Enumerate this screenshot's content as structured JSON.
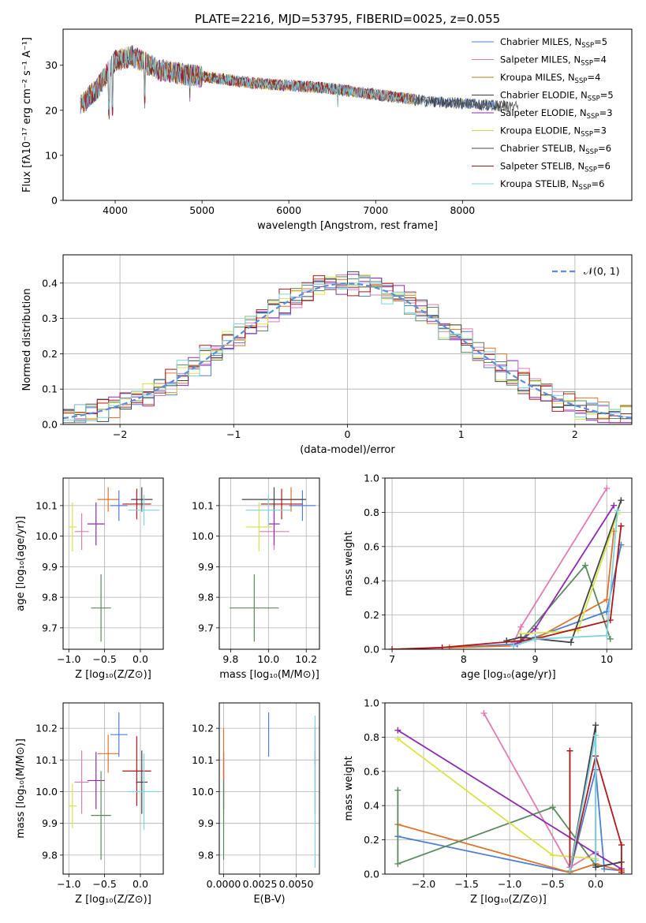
{
  "chart_data": [
    {
      "id": "spectrum",
      "type": "line",
      "title": "PLATE=2216, MJD=53795, FIBERID=0025, z=0.055",
      "xlabel": "wavelength [Angstrom, rest frame]",
      "ylabel": "Flux [fλ10⁻¹⁷ erg cm⁻² s⁻¹ A⁻¹]",
      "xlim": [
        3400,
        9950
      ],
      "ylim": [
        0,
        38
      ],
      "xticks": [
        4000,
        5000,
        6000,
        7000,
        8000
      ],
      "yticks": [
        0,
        10,
        20,
        30
      ],
      "grid": false,
      "legend_position": "upper right",
      "series": [
        {
          "name": "Chabrier MILES, N_SSP=5",
          "color": "#4e7fd6"
        },
        {
          "name": "Salpeter MILES, N_SSP=4",
          "color": "#e37bb3"
        },
        {
          "name": "Kroupa MILES, N_SSP=4",
          "color": "#b47d1a"
        },
        {
          "name": "Chabrier ELODIE, N_SSP=5",
          "color": "#3b3b3b"
        },
        {
          "name": "Salpeter ELODIE, N_SSP=3",
          "color": "#8e2bb0"
        },
        {
          "name": "Kroupa ELODIE, N_SSP=3",
          "color": "#d8d64a"
        },
        {
          "name": "Chabrier STELIB, N_SSP=6",
          "color": "#444444"
        },
        {
          "name": "Salpeter STELIB, N_SSP=6",
          "color": "#b01818"
        },
        {
          "name": "Kroupa STELIB, N_SSP=6",
          "color": "#7fd3e0"
        }
      ],
      "approx_continuum": {
        "x": [
          3600,
          3800,
          4000,
          4200,
          4500,
          4800,
          5200,
          5600,
          6000,
          6400,
          6800,
          7200,
          7600,
          8000,
          8400,
          8800
        ],
        "y": [
          21,
          25,
          31,
          32,
          29,
          28,
          27,
          26,
          25.5,
          25,
          24,
          23,
          22,
          21.5,
          21,
          20.5
        ]
      }
    },
    {
      "id": "residuals",
      "type": "histogram",
      "xlabel": "(data-model)/error",
      "ylabel": "Normed distribution",
      "xlim": [
        -2.5,
        2.5
      ],
      "ylim": [
        0,
        0.48
      ],
      "xticks": [
        -2,
        -1,
        0,
        1,
        2
      ],
      "yticks": [
        0.0,
        0.1,
        0.2,
        0.3,
        0.4
      ],
      "grid": true,
      "legend": [
        {
          "name": "𝒩(0, 1)",
          "color": "#5a8fd6",
          "style": "dashed"
        }
      ],
      "legend_position": "upper right",
      "bin_width": 0.1,
      "series_colors": [
        "#4e7fd6",
        "#e37bb3",
        "#e0732a",
        "#5b8a5f",
        "#8e2bb0",
        "#d8e34a",
        "#444444",
        "#b01818",
        "#7fd3e0"
      ]
    },
    {
      "id": "age-vs-Z",
      "type": "errorbar",
      "xlabel": "Z [log₁₀(Z/Z⊙)]",
      "ylabel": "age  [log₁₀(age/yr)]",
      "xlim": [
        -1.08,
        0.32
      ],
      "ylim": [
        9.63,
        10.19
      ],
      "xticks": [
        -1.0,
        -0.5,
        0.0
      ],
      "yticks": [
        9.7,
        9.8,
        9.9,
        10.0,
        10.1
      ],
      "grid": true,
      "points": [
        {
          "x": -0.82,
          "y": 10.015,
          "xerr": 0.1,
          "yerr": 0.06,
          "color": "#e37bb3"
        },
        {
          "x": -0.95,
          "y": 10.03,
          "xerr": 0.06,
          "yerr": 0.08,
          "color": "#d8e34a"
        },
        {
          "x": -0.62,
          "y": 10.04,
          "xerr": 0.12,
          "yerr": 0.07,
          "color": "#8e2bb0"
        },
        {
          "x": -0.55,
          "y": 9.765,
          "xerr": 0.14,
          "yerr": 0.11,
          "color": "#5b8a5f"
        },
        {
          "x": -0.45,
          "y": 10.12,
          "xerr": 0.15,
          "yerr": 0.04,
          "color": "#e0732a"
        },
        {
          "x": -0.3,
          "y": 10.1,
          "xerr": 0.12,
          "yerr": 0.05,
          "color": "#4e7fd6"
        },
        {
          "x": -0.05,
          "y": 10.105,
          "xerr": 0.2,
          "yerr": 0.05,
          "color": "#b01818"
        },
        {
          "x": 0.02,
          "y": 10.12,
          "xerr": 0.15,
          "yerr": 0.04,
          "color": "#444444"
        },
        {
          "x": 0.05,
          "y": 10.085,
          "xerr": 0.22,
          "yerr": 0.05,
          "color": "#7fd3e0"
        }
      ]
    },
    {
      "id": "age-vs-mass",
      "type": "errorbar",
      "xlabel": "mass [log₁₀(M/M⊙)]",
      "ylabel": "",
      "xlim": [
        9.74,
        10.27
      ],
      "ylim": [
        9.63,
        10.19
      ],
      "xticks": [
        9.8,
        10.0,
        10.2
      ],
      "yticks": [
        9.7,
        9.8,
        9.9,
        10.0,
        10.1
      ],
      "grid": true,
      "points": [
        {
          "x": 10.03,
          "y": 10.015,
          "xerr": 0.08,
          "yerr": 0.06,
          "color": "#e37bb3"
        },
        {
          "x": 9.95,
          "y": 10.03,
          "xerr": 0.07,
          "yerr": 0.08,
          "color": "#d8e34a"
        },
        {
          "x": 10.03,
          "y": 10.04,
          "xerr": 0.03,
          "yerr": 0.07,
          "color": "#8e2bb0"
        },
        {
          "x": 9.925,
          "y": 9.765,
          "xerr": 0.13,
          "yerr": 0.11,
          "color": "#5b8a5f"
        },
        {
          "x": 10.12,
          "y": 10.12,
          "xerr": 0.06,
          "yerr": 0.04,
          "color": "#e0732a"
        },
        {
          "x": 10.18,
          "y": 10.1,
          "xerr": 0.07,
          "yerr": 0.05,
          "color": "#4e7fd6"
        },
        {
          "x": 10.07,
          "y": 10.105,
          "xerr": 0.11,
          "yerr": 0.05,
          "color": "#b01818"
        },
        {
          "x": 10.03,
          "y": 10.12,
          "xerr": 0.17,
          "yerr": 0.04,
          "color": "#444444"
        },
        {
          "x": 10.0,
          "y": 10.085,
          "xerr": 0.12,
          "yerr": 0.05,
          "color": "#7fd3e0"
        }
      ]
    },
    {
      "id": "mass-weight-vs-age",
      "type": "line",
      "xlabel": "age  [log₁₀(age/yr)]",
      "ylabel": "mass weight",
      "xlim": [
        6.9,
        10.35
      ],
      "ylim": [
        0,
        1.0
      ],
      "xticks": [
        7,
        8,
        9,
        10
      ],
      "yticks": [
        0.0,
        0.2,
        0.4,
        0.6,
        0.8,
        1.0
      ],
      "grid": true,
      "series": [
        {
          "color": "#4e7fd6",
          "x": [
            7.8,
            8.7,
            9.0,
            10.0,
            10.2
          ],
          "y": [
            0.01,
            0.03,
            0.07,
            0.22,
            0.61
          ]
        },
        {
          "color": "#e37bb3",
          "x": [
            8.7,
            8.8,
            10.0
          ],
          "y": [
            0.04,
            0.13,
            0.94
          ]
        },
        {
          "color": "#e0732a",
          "x": [
            7.8,
            8.7,
            9.0,
            10.0,
            10.1
          ],
          "y": [
            0.01,
            0.02,
            0.06,
            0.29,
            0.69
          ]
        },
        {
          "color": "#5b8a5f",
          "x": [
            8.7,
            8.8,
            9.7,
            10.05
          ],
          "y": [
            0.02,
            0.05,
            0.49,
            0.06
          ]
        },
        {
          "color": "#8e2bb0",
          "x": [
            8.75,
            9.0,
            10.1
          ],
          "y": [
            0.03,
            0.12,
            0.84
          ]
        },
        {
          "color": "#d8e34a",
          "x": [
            8.8,
            9.6,
            10.15
          ],
          "y": [
            0.09,
            0.11,
            0.79
          ]
        },
        {
          "color": "#444444",
          "x": [
            8.6,
            8.8,
            9.5,
            10.2
          ],
          "y": [
            0.05,
            0.07,
            0.04,
            0.87
          ]
        },
        {
          "color": "#b01818",
          "x": [
            7.0,
            7.7,
            8.8,
            9.0,
            10.05,
            10.2
          ],
          "y": [
            0.0,
            0.01,
            0.05,
            0.06,
            0.17,
            0.72
          ]
        },
        {
          "color": "#7fd3e0",
          "x": [
            8.7,
            9.0,
            10.0,
            10.15
          ],
          "y": [
            0.02,
            0.06,
            0.08,
            0.81
          ]
        }
      ]
    },
    {
      "id": "mass-vs-Z",
      "type": "errorbar",
      "xlabel": "Z [log₁₀(Z/Z⊙)]",
      "ylabel": "mass [log₁₀(M/M⊙)]",
      "xlim": [
        -1.08,
        0.32
      ],
      "ylim": [
        9.74,
        10.28
      ],
      "xticks": [
        -1.0,
        -0.5,
        0.0
      ],
      "yticks": [
        9.8,
        9.9,
        10.0,
        10.1,
        10.2
      ],
      "grid": true,
      "points": [
        {
          "x": -0.82,
          "y": 10.03,
          "xerr": 0.1,
          "yerr": 0.1,
          "color": "#e37bb3"
        },
        {
          "x": -0.95,
          "y": 9.955,
          "xerr": 0.06,
          "yerr": 0.07,
          "color": "#d8e34a"
        },
        {
          "x": -0.62,
          "y": 10.035,
          "xerr": 0.12,
          "yerr": 0.09,
          "color": "#8e2bb0"
        },
        {
          "x": -0.55,
          "y": 9.925,
          "xerr": 0.14,
          "yerr": 0.14,
          "color": "#5b8a5f"
        },
        {
          "x": -0.45,
          "y": 10.12,
          "xerr": 0.15,
          "yerr": 0.06,
          "color": "#e0732a"
        },
        {
          "x": -0.3,
          "y": 10.18,
          "xerr": 0.12,
          "yerr": 0.07,
          "color": "#4e7fd6"
        },
        {
          "x": -0.05,
          "y": 10.065,
          "xerr": 0.2,
          "yerr": 0.11,
          "color": "#b01818"
        },
        {
          "x": 0.02,
          "y": 10.03,
          "xerr": 0.08,
          "yerr": 0.1,
          "color": "#444444"
        },
        {
          "x": 0.05,
          "y": 10.0,
          "xerr": 0.22,
          "yerr": 0.12,
          "color": "#7fd3e0"
        }
      ]
    },
    {
      "id": "mass-vs-EBV",
      "type": "errorbar",
      "xlabel": "E(B-V)",
      "ylabel": "",
      "xlim": [
        -0.0003,
        0.0066
      ],
      "ylim": [
        9.74,
        10.28
      ],
      "xticks": [
        0.0,
        0.0025,
        0.005
      ],
      "xticklabels": [
        "0.0000",
        "0.0025",
        "0.0050"
      ],
      "yticks": [
        9.8,
        9.9,
        10.0,
        10.1,
        10.2
      ],
      "grid": true,
      "points": [
        {
          "x": 0.0,
          "y": 10.03,
          "xerr": 0,
          "yerr": 0.1,
          "color": "#e37bb3"
        },
        {
          "x": 0.0,
          "y": 9.955,
          "xerr": 0,
          "yerr": 0.07,
          "color": "#d8e34a"
        },
        {
          "x": 0.0,
          "y": 10.035,
          "xerr": 0,
          "yerr": 0.09,
          "color": "#8e2bb0"
        },
        {
          "x": 0.0,
          "y": 9.925,
          "xerr": 0,
          "yerr": 0.14,
          "color": "#5b8a5f"
        },
        {
          "x": 0.0,
          "y": 10.12,
          "xerr": 0,
          "yerr": 0.08,
          "color": "#e0732a"
        },
        {
          "x": 0.0031,
          "y": 10.18,
          "xerr": 0,
          "yerr": 0.07,
          "color": "#4e7fd6"
        },
        {
          "x": 0.0063,
          "y": 10.145,
          "xerr": 0,
          "yerr": 0.06,
          "color": "#b01818"
        },
        {
          "x": 0.0063,
          "y": 10.03,
          "xerr": 0,
          "yerr": 0.1,
          "color": "#444444"
        },
        {
          "x": 0.0063,
          "y": 10.0,
          "xerr": 0,
          "yerr": 0.24,
          "color": "#7fd3e0"
        }
      ]
    },
    {
      "id": "mass-weight-vs-Z",
      "type": "line",
      "xlabel": "Z [log₁₀(Z/Z⊙)]",
      "ylabel": "mass weight",
      "xlim": [
        -2.45,
        0.42
      ],
      "ylim": [
        0,
        1.0
      ],
      "xticks": [
        -2.0,
        -1.5,
        -1.0,
        -0.5,
        0.0
      ],
      "yticks": [
        0.0,
        0.2,
        0.4,
        0.6,
        0.8,
        1.0
      ],
      "grid": true,
      "series": [
        {
          "color": "#4e7fd6",
          "x": [
            -2.3,
            -0.3,
            0.0,
            0.1,
            0.3
          ],
          "y": [
            0.22,
            0.01,
            0.61,
            0.03,
            0.02
          ]
        },
        {
          "color": "#e37bb3",
          "x": [
            -1.3,
            -0.3,
            0.0
          ],
          "y": [
            0.94,
            0.04,
            0.13
          ]
        },
        {
          "color": "#e0732a",
          "x": [
            -2.3,
            -0.3,
            0.0,
            0.3
          ],
          "y": [
            0.29,
            0.01,
            0.06,
            0.02
          ]
        },
        {
          "color": "#5b8a5f",
          "x": [
            -2.3,
            -2.3,
            -0.5,
            0.0
          ],
          "y": [
            0.49,
            0.06,
            0.39,
            0.05
          ]
        },
        {
          "color": "#8e2bb0",
          "x": [
            -2.3,
            0.0,
            0.3
          ],
          "y": [
            0.84,
            0.12,
            0.03
          ]
        },
        {
          "color": "#d8e34a",
          "x": [
            -2.3,
            -0.5,
            0.0
          ],
          "y": [
            0.79,
            0.11,
            0.09
          ]
        },
        {
          "color": "#444444",
          "x": [
            -0.3,
            0.0,
            0.0,
            0.3
          ],
          "y": [
            0.02,
            0.87,
            0.04,
            0.07
          ]
        },
        {
          "color": "#b01818",
          "x": [
            -0.3,
            -0.3,
            0.0,
            0.3,
            0.3
          ],
          "y": [
            0.72,
            0.02,
            0.69,
            0.17,
            0.01
          ]
        },
        {
          "color": "#7fd3e0",
          "x": [
            -0.3,
            0.0,
            0.0
          ],
          "y": [
            0.02,
            0.81,
            0.08
          ]
        }
      ]
    }
  ]
}
